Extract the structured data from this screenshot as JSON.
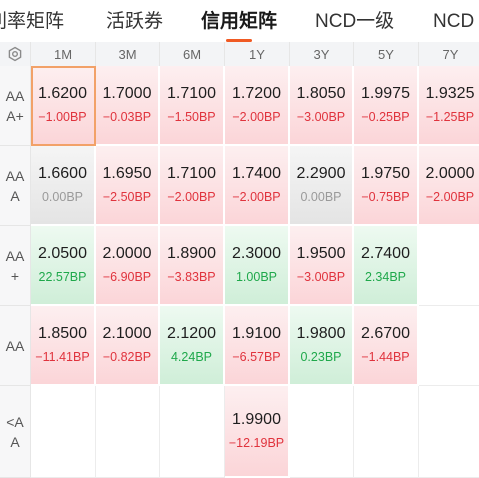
{
  "tabs": [
    {
      "label": "利率矩阵",
      "active": false
    },
    {
      "label": "活跃券",
      "active": false
    },
    {
      "label": "信用矩阵",
      "active": true
    },
    {
      "label": "NCD一级",
      "active": false
    },
    {
      "label": "NCD",
      "active": false
    }
  ],
  "header": {
    "settings_icon": "gear-icon",
    "columns": [
      "1M",
      "3M",
      "6M",
      "1Y",
      "3Y",
      "5Y",
      "7Y"
    ]
  },
  "rows": [
    {
      "label_lines": [
        "AA",
        "A+"
      ],
      "cells": [
        {
          "value": "1.6200",
          "change": "−1.00BP",
          "tone": "red",
          "selected": true
        },
        {
          "value": "1.7000",
          "change": "−0.03BP",
          "tone": "red"
        },
        {
          "value": "1.7100",
          "change": "−1.50BP",
          "tone": "red"
        },
        {
          "value": "1.7200",
          "change": "−2.00BP",
          "tone": "red"
        },
        {
          "value": "1.8050",
          "change": "−3.00BP",
          "tone": "red"
        },
        {
          "value": "1.9975",
          "change": "−0.25BP",
          "tone": "red"
        },
        {
          "value": "1.9325",
          "change": "−1.25BP",
          "tone": "red"
        }
      ]
    },
    {
      "label_lines": [
        "AA",
        "A"
      ],
      "cells": [
        {
          "value": "1.6600",
          "change": "0.00BP",
          "tone": "gray"
        },
        {
          "value": "1.6950",
          "change": "−2.50BP",
          "tone": "red"
        },
        {
          "value": "1.7100",
          "change": "−2.00BP",
          "tone": "red"
        },
        {
          "value": "1.7400",
          "change": "−2.00BP",
          "tone": "red"
        },
        {
          "value": "2.2900",
          "change": "0.00BP",
          "tone": "gray"
        },
        {
          "value": "1.9750",
          "change": "−0.75BP",
          "tone": "red"
        },
        {
          "value": "2.0000",
          "change": "−2.00BP",
          "tone": "red"
        }
      ]
    },
    {
      "label_lines": [
        "AA",
        "+"
      ],
      "cells": [
        {
          "value": "2.0500",
          "change": "22.57BP",
          "tone": "green"
        },
        {
          "value": "2.0000",
          "change": "−6.90BP",
          "tone": "red"
        },
        {
          "value": "1.8900",
          "change": "−3.83BP",
          "tone": "red"
        },
        {
          "value": "2.3000",
          "change": "1.00BP",
          "tone": "green"
        },
        {
          "value": "1.9500",
          "change": "−3.00BP",
          "tone": "red"
        },
        {
          "value": "2.7400",
          "change": "2.34BP",
          "tone": "green"
        },
        {
          "value": "",
          "change": "",
          "tone": "empty"
        }
      ]
    },
    {
      "label_lines": [
        "AA"
      ],
      "cells": [
        {
          "value": "1.8500",
          "change": "−11.41BP",
          "tone": "red"
        },
        {
          "value": "2.1000",
          "change": "−0.82BP",
          "tone": "red"
        },
        {
          "value": "2.1200",
          "change": "4.24BP",
          "tone": "green"
        },
        {
          "value": "1.9100",
          "change": "−6.57BP",
          "tone": "red"
        },
        {
          "value": "1.9800",
          "change": "0.23BP",
          "tone": "green"
        },
        {
          "value": "2.6700",
          "change": "−1.44BP",
          "tone": "red"
        },
        {
          "value": "",
          "change": "",
          "tone": "empty"
        }
      ]
    },
    {
      "label_lines": [
        "<A",
        "A"
      ],
      "cells": [
        {
          "value": "",
          "change": "",
          "tone": "empty"
        },
        {
          "value": "",
          "change": "",
          "tone": "empty"
        },
        {
          "value": "",
          "change": "",
          "tone": "empty"
        },
        {
          "value": "1.9900",
          "change": "−12.19BP",
          "tone": "red"
        },
        {
          "value": "",
          "change": "",
          "tone": "empty"
        },
        {
          "value": "",
          "change": "",
          "tone": "empty"
        },
        {
          "value": "",
          "change": "",
          "tone": "empty"
        }
      ]
    }
  ],
  "colors": {
    "accent": "#f05a23",
    "down": "#e0333d",
    "up": "#1fa84b",
    "flat": "#9a9a9a"
  }
}
